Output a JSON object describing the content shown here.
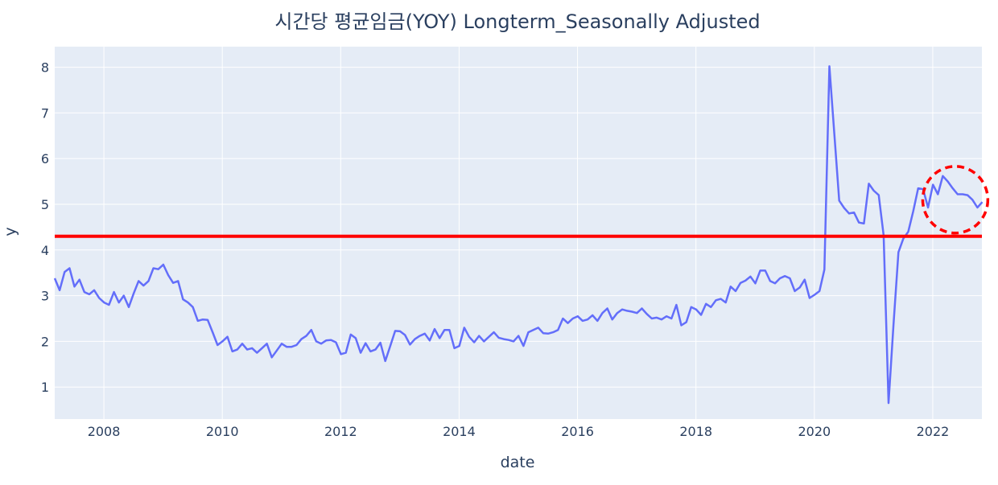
{
  "chart_data": {
    "type": "line",
    "title": "시간당 평균임금(YOY) Longterm_Seasonally Adjusted",
    "xlabel": "date",
    "ylabel": "y",
    "xlim": [
      2007.17,
      2022.83
    ],
    "ylim": [
      0.3,
      8.45
    ],
    "x_ticks": [
      2008,
      2010,
      2012,
      2014,
      2016,
      2018,
      2020,
      2022
    ],
    "y_ticks": [
      1,
      2,
      3,
      4,
      5,
      6,
      7,
      8
    ],
    "grid": true,
    "colors": {
      "plot_background": "#e5ecf6",
      "grid": "#ffffff",
      "series": "#636efa",
      "reference_line": "#ff0000",
      "highlight": "#ff0000"
    },
    "reference_line": {
      "y": 4.3
    },
    "highlight_circle": {
      "x": 2022.38,
      "y": 5.1,
      "rx": 0.55,
      "ry": 0.73
    },
    "series": [
      {
        "x_start": 2007.17,
        "x_step": 0.0833333,
        "values": [
          3.38,
          3.12,
          3.52,
          3.6,
          3.2,
          3.35,
          3.08,
          3.03,
          3.12,
          2.95,
          2.85,
          2.8,
          3.08,
          2.85,
          3.0,
          2.75,
          3.05,
          3.32,
          3.22,
          3.32,
          3.6,
          3.58,
          3.68,
          3.45,
          3.28,
          3.32,
          2.92,
          2.85,
          2.75,
          2.45,
          2.48,
          2.47,
          2.2,
          1.92,
          2.0,
          2.1,
          1.78,
          1.82,
          1.95,
          1.82,
          1.85,
          1.75,
          1.85,
          1.95,
          1.65,
          1.8,
          1.95,
          1.88,
          1.88,
          1.92,
          2.05,
          2.12,
          2.25,
          2.0,
          1.95,
          2.02,
          2.03,
          1.98,
          1.72,
          1.75,
          2.15,
          2.07,
          1.75,
          1.96,
          1.78,
          1.82,
          1.97,
          1.57,
          1.9,
          2.23,
          2.22,
          2.14,
          1.93,
          2.05,
          2.12,
          2.17,
          2.02,
          2.27,
          2.07,
          2.25,
          2.25,
          1.85,
          1.9,
          2.3,
          2.1,
          1.98,
          2.12,
          2.0,
          2.1,
          2.2,
          2.08,
          2.05,
          2.03,
          2.0,
          2.12,
          1.9,
          2.2,
          2.25,
          2.3,
          2.18,
          2.17,
          2.2,
          2.25,
          2.5,
          2.4,
          2.5,
          2.55,
          2.45,
          2.48,
          2.57,
          2.45,
          2.62,
          2.72,
          2.48,
          2.62,
          2.7,
          2.67,
          2.65,
          2.62,
          2.72,
          2.6,
          2.5,
          2.52,
          2.48,
          2.55,
          2.5,
          2.8,
          2.35,
          2.42,
          2.75,
          2.7,
          2.58,
          2.82,
          2.75,
          2.9,
          2.93,
          2.85,
          3.2,
          3.1,
          3.28,
          3.33,
          3.42,
          3.27,
          3.55,
          3.55,
          3.32,
          3.27,
          3.38,
          3.43,
          3.38,
          3.1,
          3.18,
          3.35,
          2.95,
          3.02,
          3.1,
          3.57,
          8.02,
          6.55,
          5.08,
          4.92,
          4.8,
          4.82,
          4.6,
          4.58,
          5.45,
          5.3,
          5.2,
          4.32,
          0.65,
          2.35,
          3.95,
          4.25,
          4.4,
          4.85,
          5.35,
          5.33,
          4.93,
          5.43,
          5.22,
          5.62,
          5.5,
          5.35,
          5.22,
          5.22,
          5.2,
          5.1,
          4.93,
          5.05
        ]
      }
    ]
  }
}
